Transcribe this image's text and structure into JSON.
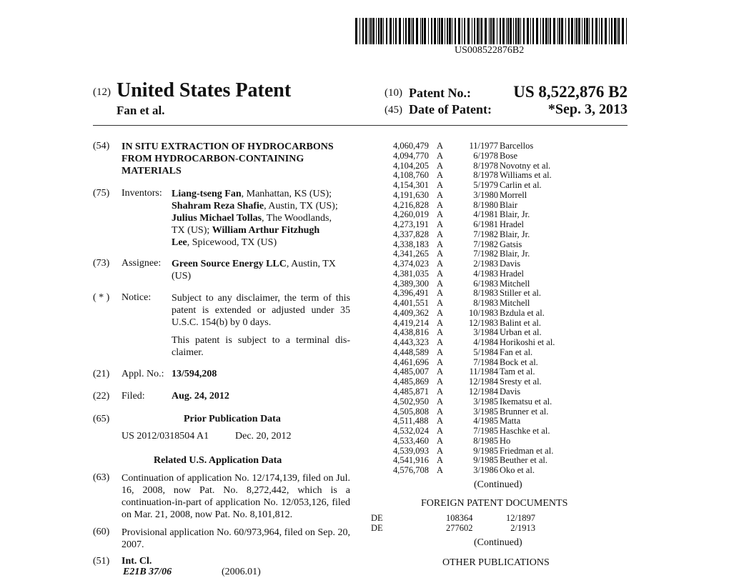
{
  "barcode": {
    "number": "US008522876B2"
  },
  "header": {
    "code12": "(12)",
    "title": "United States Patent",
    "inventors_short": "Fan et al.",
    "code10": "(10)",
    "patent_no_label": "Patent No.:",
    "patent_no": "US 8,522,876 B2",
    "code45": "(45)",
    "date_label": "Date of Patent:",
    "date": "*Sep. 3, 2013"
  },
  "left": {
    "title_code": "(54)",
    "title": "IN SITU EXTRACTION OF HYDROCARBONS FROM HYDROCARBON-CONTAINING MATERIALS",
    "inventors_code": "(75)",
    "inventors_label": "Inventors:",
    "assignee_code": "(73)",
    "assignee_label": "Assignee:",
    "assignee_name": "Green Source Energy LLC",
    "assignee_loc": ", Austin, TX (US)",
    "notice_code": "( * )",
    "notice_label": "Notice:",
    "notice_text": "Subject to any disclaimer, the term of this patent is extended or adjusted under 35 U.S.C. 154(b) by 0 days.",
    "notice_text2": "This patent is subject to a terminal dis-claimer.",
    "appl_code": "(21)",
    "appl_label": "Appl. No.:",
    "appl_no": "13/594,208",
    "filed_code": "(22)",
    "filed_label": "Filed:",
    "filed_date": "Aug. 24, 2012",
    "prior_code": "(65)",
    "prior_heading": "Prior Publication Data",
    "prior_pub": "US 2012/0318504 A1",
    "prior_date": "Dec. 20, 2012",
    "related_heading": "Related U.S. Application Data",
    "cont_code": "(63)",
    "cont_text": "Continuation of application No. 12/174,139, filed on Jul. 16, 2008, now Pat. No. 8,272,442, which is a continuation-in-part of application No. 12/053,126, filed on Mar. 21, 2008, now Pat. No. 8,101,812.",
    "prov_code": "(60)",
    "prov_text": "Provisional application No. 60/973,964, filed on Sep. 20, 2007.",
    "intcl_code": "(51)",
    "intcl_label": "Int. Cl.",
    "intcl_class": "E21B 37/06",
    "intcl_version": "(2006.01)"
  },
  "inventors": [
    {
      "name": "Liang-tseng Fan",
      "loc": ", Manhattan, KS (US);"
    },
    {
      "name": "Shahram Reza Shafie",
      "loc": ", Austin, TX (US);"
    },
    {
      "name": "Julius Michael Tollas",
      "loc": ", The Woodlands,"
    },
    {
      "name": "",
      "loc": "TX (US); "
    },
    {
      "name": "William Arthur Fitzhugh",
      "loc": ""
    },
    {
      "name": "Lee",
      "loc": ", Spicewood, TX (US)"
    }
  ],
  "references": [
    [
      "4,060,479",
      "A",
      "11/1977",
      "Barcellos"
    ],
    [
      "4,094,770",
      "A",
      "6/1978",
      "Bose"
    ],
    [
      "4,104,205",
      "A",
      "8/1978",
      "Novotny et al."
    ],
    [
      "4,108,760",
      "A",
      "8/1978",
      "Williams et al."
    ],
    [
      "4,154,301",
      "A",
      "5/1979",
      "Carlin et al."
    ],
    [
      "4,191,630",
      "A",
      "3/1980",
      "Morrell"
    ],
    [
      "4,216,828",
      "A",
      "8/1980",
      "Blair"
    ],
    [
      "4,260,019",
      "A",
      "4/1981",
      "Blair, Jr."
    ],
    [
      "4,273,191",
      "A",
      "6/1981",
      "Hradel"
    ],
    [
      "4,337,828",
      "A",
      "7/1982",
      "Blair, Jr."
    ],
    [
      "4,338,183",
      "A",
      "7/1982",
      "Gatsis"
    ],
    [
      "4,341,265",
      "A",
      "7/1982",
      "Blair, Jr."
    ],
    [
      "4,374,023",
      "A",
      "2/1983",
      "Davis"
    ],
    [
      "4,381,035",
      "A",
      "4/1983",
      "Hradel"
    ],
    [
      "4,389,300",
      "A",
      "6/1983",
      "Mitchell"
    ],
    [
      "4,396,491",
      "A",
      "8/1983",
      "Stiller et al."
    ],
    [
      "4,401,551",
      "A",
      "8/1983",
      "Mitchell"
    ],
    [
      "4,409,362",
      "A",
      "10/1983",
      "Bzdula et al."
    ],
    [
      "4,419,214",
      "A",
      "12/1983",
      "Balint et al."
    ],
    [
      "4,438,816",
      "A",
      "3/1984",
      "Urban et al."
    ],
    [
      "4,443,323",
      "A",
      "4/1984",
      "Horikoshi et al."
    ],
    [
      "4,448,589",
      "A",
      "5/1984",
      "Fan et al."
    ],
    [
      "4,461,696",
      "A",
      "7/1984",
      "Bock et al."
    ],
    [
      "4,485,007",
      "A",
      "11/1984",
      "Tam et al."
    ],
    [
      "4,485,869",
      "A",
      "12/1984",
      "Sresty et al."
    ],
    [
      "4,485,871",
      "A",
      "12/1984",
      "Davis"
    ],
    [
      "4,502,950",
      "A",
      "3/1985",
      "Ikematsu et al."
    ],
    [
      "4,505,808",
      "A",
      "3/1985",
      "Brunner et al."
    ],
    [
      "4,511,488",
      "A",
      "4/1985",
      "Matta"
    ],
    [
      "4,532,024",
      "A",
      "7/1985",
      "Haschke et al."
    ],
    [
      "4,533,460",
      "A",
      "8/1985",
      "Ho"
    ],
    [
      "4,539,093",
      "A",
      "9/1985",
      "Friedman et al."
    ],
    [
      "4,541,916",
      "A",
      "9/1985",
      "Beuther et al."
    ],
    [
      "4,576,708",
      "A",
      "3/1986",
      "Oko et al."
    ]
  ],
  "right": {
    "continued1": "(Continued)",
    "foreign_heading": "FOREIGN PATENT DOCUMENTS",
    "foreign": [
      [
        "DE",
        "108364",
        "12/1897"
      ],
      [
        "DE",
        "277602",
        "2/1913"
      ]
    ],
    "continued2": "(Continued)",
    "other_heading": "OTHER PUBLICATIONS"
  }
}
